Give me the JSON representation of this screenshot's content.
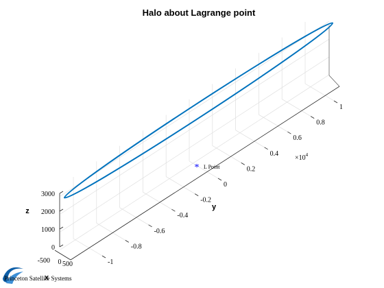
{
  "chart_data": {
    "type": "line",
    "title": "Halo about Lagrange point",
    "xlabel": "x",
    "ylabel": "y",
    "zlabel": "z",
    "y_exponent_label": "×10",
    "y_exponent_power": "4",
    "x_ticks": [
      "-500",
      "0",
      "500"
    ],
    "y_ticks": [
      "-1",
      "-0.8",
      "-0.6",
      "-0.4",
      "-0.2",
      "0",
      "0.2",
      "0.4",
      "0.6",
      "0.8",
      "1"
    ],
    "z_ticks": [
      "0",
      "1000",
      "2000",
      "3000"
    ],
    "xlim": [
      -500,
      500
    ],
    "ylim": [
      -1.1,
      1.1
    ],
    "zlim": [
      0,
      3200
    ],
    "grid": true,
    "series": [
      {
        "color": "#0072bd",
        "x": [
          0,
          0
        ],
        "y_1e4": [
          -1.03,
          1.03
        ],
        "z": [
          3000,
          3000
        ]
      }
    ],
    "annotation": {
      "label": "L Point",
      "marker": "*",
      "color": "#0000ff",
      "x": 0,
      "y_1e4": 0,
      "z": 1500
    }
  },
  "footer": {
    "logo_text": "Princeton Satellite Systems"
  }
}
